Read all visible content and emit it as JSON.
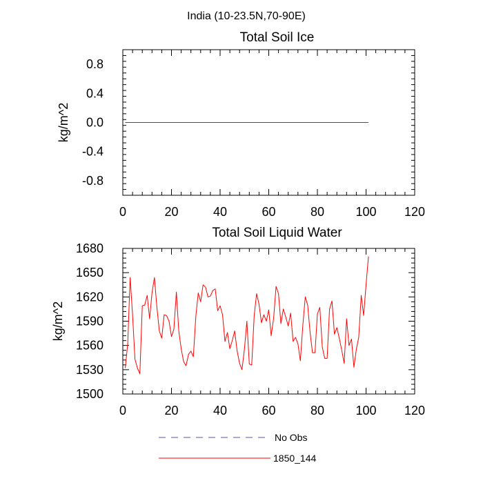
{
  "figure": {
    "suptitle": "India (10-23.5N,70-90E)"
  },
  "chart_data": [
    {
      "type": "line",
      "title": "Total Soil Ice",
      "xlabel": "",
      "ylabel": "kg/m^2",
      "xlim": [
        0,
        120
      ],
      "ylim": [
        -1.0,
        1.0
      ],
      "xticks": [
        0,
        20,
        40,
        60,
        80,
        100,
        120
      ],
      "xtick_labels": [
        "0",
        "20",
        "40",
        "60",
        "80",
        "100",
        "120"
      ],
      "yticks": [
        -0.8,
        -0.4,
        0.0,
        0.4,
        0.8
      ],
      "ytick_labels": [
        "-0.8",
        "-0.4",
        "0.0",
        "0.4",
        "0.8"
      ],
      "grid": false,
      "series": [
        {
          "name": "1850_144",
          "color": "#ff0000",
          "style": "solid",
          "x_start": 1,
          "x_end": 101,
          "values": [
            0.0
          ]
        }
      ]
    },
    {
      "type": "line",
      "title": "Total Soil Liquid Water",
      "xlabel": "",
      "ylabel": "kg/m^2",
      "xlim": [
        0,
        120
      ],
      "ylim": [
        1500,
        1680
      ],
      "xticks": [
        0,
        20,
        40,
        60,
        80,
        100,
        120
      ],
      "xtick_labels": [
        "0",
        "20",
        "40",
        "60",
        "80",
        "100",
        "120"
      ],
      "yticks": [
        1500,
        1530,
        1560,
        1590,
        1620,
        1650,
        1680
      ],
      "ytick_labels": [
        "1500",
        "1530",
        "1560",
        "1590",
        "1620",
        "1650",
        "1680"
      ],
      "grid": false,
      "series": [
        {
          "name": "1850_144",
          "color": "#ff0000",
          "style": "solid",
          "x_start": 1,
          "values": [
            1532,
            1562,
            1644,
            1598,
            1543,
            1532,
            1525,
            1609,
            1610,
            1622,
            1593,
            1625,
            1644,
            1608,
            1578,
            1569,
            1598,
            1597,
            1590,
            1571,
            1580,
            1626,
            1578,
            1556,
            1540,
            1535,
            1549,
            1553,
            1546,
            1596,
            1625,
            1614,
            1635,
            1632,
            1620,
            1621,
            1628,
            1630,
            1603,
            1609,
            1598,
            1565,
            1576,
            1556,
            1566,
            1578,
            1553,
            1538,
            1530,
            1556,
            1590,
            1537,
            1536,
            1597,
            1624,
            1611,
            1588,
            1598,
            1590,
            1604,
            1572,
            1594,
            1633,
            1624,
            1587,
            1605,
            1595,
            1584,
            1600,
            1565,
            1570,
            1562,
            1541,
            1585,
            1620,
            1610,
            1576,
            1551,
            1551,
            1599,
            1607,
            1558,
            1544,
            1544,
            1605,
            1615,
            1574,
            1582,
            1569,
            1554,
            1538,
            1593,
            1560,
            1568,
            1533,
            1555,
            1570,
            1622,
            1597,
            1635,
            1670
          ]
        }
      ]
    }
  ],
  "legend": {
    "placement": "bottom-center",
    "entries": [
      {
        "label": "No Obs",
        "color": "#5555aa",
        "style": "dashed"
      },
      {
        "label": "1850_144",
        "color": "#ff0000",
        "style": "solid"
      }
    ]
  }
}
